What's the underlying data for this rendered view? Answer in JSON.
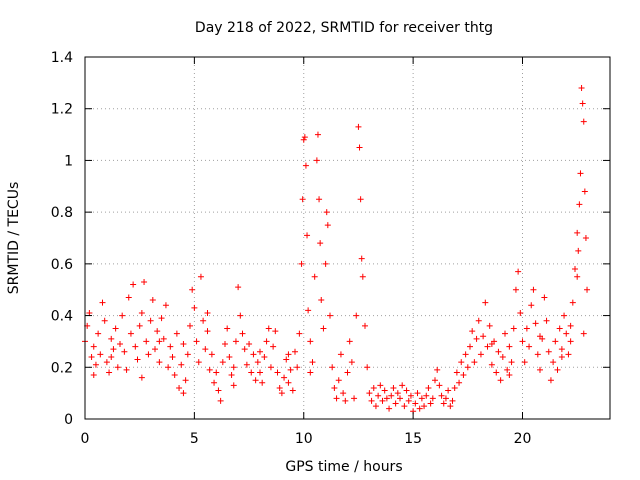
{
  "chart_data": {
    "type": "scatter",
    "title": "Day 218 of 2022, SRMTID for receiver thtg",
    "xlabel": "GPS time / hours",
    "ylabel": "SRMTID / TECUs",
    "xlim": [
      0,
      24
    ],
    "ylim": [
      0,
      1.4
    ],
    "xticks": [
      0,
      5,
      10,
      15,
      20
    ],
    "xtick_labels": [
      "0",
      "5",
      "10",
      "15",
      "20"
    ],
    "yticks": [
      0,
      0.2,
      0.4,
      0.6,
      0.8,
      1.0,
      1.2,
      1.4
    ],
    "ytick_labels": [
      "0",
      "0.2",
      "0.4",
      "0.6",
      "0.8",
      "1",
      "1.2",
      "1.4"
    ],
    "grid": true,
    "marker": "+",
    "marker_color": "#ff0000",
    "series": [
      {
        "name": "SRMTID",
        "points": [
          [
            0.0,
            0.3
          ],
          [
            0.1,
            0.36
          ],
          [
            0.2,
            0.41
          ],
          [
            0.3,
            0.24
          ],
          [
            0.4,
            0.28
          ],
          [
            0.5,
            0.21
          ],
          [
            0.6,
            0.33
          ],
          [
            0.7,
            0.25
          ],
          [
            0.8,
            0.45
          ],
          [
            0.9,
            0.38
          ],
          [
            1.0,
            0.22
          ],
          [
            1.1,
            0.18
          ],
          [
            1.2,
            0.31
          ],
          [
            1.3,
            0.27
          ],
          [
            1.4,
            0.35
          ],
          [
            1.5,
            0.2
          ],
          [
            1.6,
            0.29
          ],
          [
            1.7,
            0.4
          ],
          [
            1.8,
            0.26
          ],
          [
            1.9,
            0.19
          ],
          [
            2.0,
            0.47
          ],
          [
            2.1,
            0.33
          ],
          [
            2.2,
            0.52
          ],
          [
            2.3,
            0.28
          ],
          [
            2.4,
            0.23
          ],
          [
            2.5,
            0.36
          ],
          [
            2.6,
            0.41
          ],
          [
            2.7,
            0.53
          ],
          [
            2.8,
            0.3
          ],
          [
            2.9,
            0.25
          ],
          [
            3.0,
            0.38
          ],
          [
            3.1,
            0.46
          ],
          [
            3.2,
            0.27
          ],
          [
            3.3,
            0.34
          ],
          [
            3.4,
            0.22
          ],
          [
            3.5,
            0.39
          ],
          [
            3.6,
            0.31
          ],
          [
            3.7,
            0.44
          ],
          [
            3.8,
            0.2
          ],
          [
            3.9,
            0.28
          ],
          [
            4.0,
            0.24
          ],
          [
            4.1,
            0.17
          ],
          [
            4.2,
            0.33
          ],
          [
            4.3,
            0.12
          ],
          [
            4.4,
            0.21
          ],
          [
            4.5,
            0.29
          ],
          [
            4.6,
            0.15
          ],
          [
            4.7,
            0.25
          ],
          [
            4.8,
            0.36
          ],
          [
            4.9,
            0.5
          ],
          [
            5.0,
            0.43
          ],
          [
            5.1,
            0.3
          ],
          [
            5.2,
            0.22
          ],
          [
            5.3,
            0.55
          ],
          [
            5.4,
            0.38
          ],
          [
            5.5,
            0.27
          ],
          [
            5.6,
            0.34
          ],
          [
            5.7,
            0.19
          ],
          [
            5.8,
            0.25
          ],
          [
            5.9,
            0.14
          ],
          [
            6.0,
            0.18
          ],
          [
            6.1,
            0.11
          ],
          [
            6.2,
            0.07
          ],
          [
            6.3,
            0.22
          ],
          [
            6.4,
            0.29
          ],
          [
            6.5,
            0.35
          ],
          [
            6.6,
            0.24
          ],
          [
            6.7,
            0.17
          ],
          [
            6.8,
            0.13
          ],
          [
            6.9,
            0.3
          ],
          [
            7.0,
            0.51
          ],
          [
            7.1,
            0.4
          ],
          [
            7.2,
            0.33
          ],
          [
            7.3,
            0.27
          ],
          [
            7.4,
            0.21
          ],
          [
            7.5,
            0.29
          ],
          [
            7.6,
            0.18
          ],
          [
            7.7,
            0.25
          ],
          [
            7.8,
            0.15
          ],
          [
            7.9,
            0.22
          ],
          [
            8.0,
            0.26
          ],
          [
            8.1,
            0.14
          ],
          [
            8.2,
            0.24
          ],
          [
            8.3,
            0.3
          ],
          [
            8.4,
            0.35
          ],
          [
            8.5,
            0.2
          ],
          [
            8.6,
            0.28
          ],
          [
            8.7,
            0.34
          ],
          [
            8.8,
            0.18
          ],
          [
            8.9,
            0.12
          ],
          [
            9.0,
            0.1
          ],
          [
            9.1,
            0.16
          ],
          [
            9.2,
            0.23
          ],
          [
            9.3,
            0.14
          ],
          [
            9.4,
            0.19
          ],
          [
            9.5,
            0.11
          ],
          [
            9.6,
            0.26
          ],
          [
            9.7,
            0.2
          ],
          [
            9.8,
            0.33
          ],
          [
            9.9,
            0.6
          ],
          [
            9.95,
            0.85
          ],
          [
            10.0,
            1.08
          ],
          [
            10.05,
            1.09
          ],
          [
            10.1,
            0.98
          ],
          [
            10.15,
            0.71
          ],
          [
            10.2,
            0.42
          ],
          [
            10.3,
            0.3
          ],
          [
            10.4,
            0.22
          ],
          [
            10.5,
            0.55
          ],
          [
            10.6,
            1.0
          ],
          [
            10.65,
            1.1
          ],
          [
            10.7,
            0.85
          ],
          [
            10.75,
            0.68
          ],
          [
            10.8,
            0.46
          ],
          [
            10.9,
            0.35
          ],
          [
            11.0,
            0.6
          ],
          [
            11.05,
            0.8
          ],
          [
            11.1,
            0.75
          ],
          [
            11.2,
            0.4
          ],
          [
            11.3,
            0.2
          ],
          [
            11.4,
            0.12
          ],
          [
            11.5,
            0.08
          ],
          [
            11.6,
            0.15
          ],
          [
            11.7,
            0.25
          ],
          [
            11.8,
            0.1
          ],
          [
            11.9,
            0.07
          ],
          [
            12.0,
            0.18
          ],
          [
            12.1,
            0.3
          ],
          [
            12.2,
            0.22
          ],
          [
            12.3,
            0.08
          ],
          [
            12.4,
            0.4
          ],
          [
            12.5,
            1.13
          ],
          [
            12.55,
            1.05
          ],
          [
            12.6,
            0.85
          ],
          [
            12.65,
            0.62
          ],
          [
            12.7,
            0.55
          ],
          [
            12.8,
            0.36
          ],
          [
            12.9,
            0.2
          ],
          [
            13.0,
            0.1
          ],
          [
            13.1,
            0.07
          ],
          [
            13.2,
            0.12
          ],
          [
            13.3,
            0.05
          ],
          [
            13.4,
            0.09
          ],
          [
            13.5,
            0.13
          ],
          [
            13.6,
            0.07
          ],
          [
            13.7,
            0.11
          ],
          [
            13.8,
            0.08
          ],
          [
            13.9,
            0.04
          ],
          [
            14.0,
            0.09
          ],
          [
            14.1,
            0.12
          ],
          [
            14.2,
            0.06
          ],
          [
            14.3,
            0.1
          ],
          [
            14.4,
            0.08
          ],
          [
            14.5,
            0.13
          ],
          [
            14.6,
            0.05
          ],
          [
            14.7,
            0.11
          ],
          [
            14.8,
            0.07
          ],
          [
            14.9,
            0.09
          ],
          [
            15.0,
            0.03
          ],
          [
            15.1,
            0.06
          ],
          [
            15.2,
            0.1
          ],
          [
            15.3,
            0.04
          ],
          [
            15.4,
            0.08
          ],
          [
            15.5,
            0.05
          ],
          [
            15.6,
            0.09
          ],
          [
            15.7,
            0.12
          ],
          [
            15.8,
            0.06
          ],
          [
            15.9,
            0.08
          ],
          [
            16.0,
            0.15
          ],
          [
            16.1,
            0.19
          ],
          [
            16.2,
            0.13
          ],
          [
            16.3,
            0.09
          ],
          [
            16.4,
            0.06
          ],
          [
            16.5,
            0.08
          ],
          [
            16.6,
            0.11
          ],
          [
            16.7,
            0.05
          ],
          [
            16.8,
            0.07
          ],
          [
            16.9,
            0.12
          ],
          [
            17.0,
            0.18
          ],
          [
            17.1,
            0.14
          ],
          [
            17.2,
            0.22
          ],
          [
            17.3,
            0.17
          ],
          [
            17.4,
            0.25
          ],
          [
            17.5,
            0.2
          ],
          [
            17.6,
            0.28
          ],
          [
            17.7,
            0.34
          ],
          [
            17.8,
            0.22
          ],
          [
            17.9,
            0.31
          ],
          [
            18.0,
            0.38
          ],
          [
            18.1,
            0.25
          ],
          [
            18.2,
            0.32
          ],
          [
            18.3,
            0.45
          ],
          [
            18.4,
            0.28
          ],
          [
            18.5,
            0.36
          ],
          [
            18.6,
            0.21
          ],
          [
            18.7,
            0.3
          ],
          [
            18.8,
            0.18
          ],
          [
            18.9,
            0.26
          ],
          [
            19.0,
            0.15
          ],
          [
            19.1,
            0.24
          ],
          [
            19.2,
            0.33
          ],
          [
            19.3,
            0.19
          ],
          [
            19.4,
            0.28
          ],
          [
            19.5,
            0.22
          ],
          [
            19.6,
            0.35
          ],
          [
            19.7,
            0.5
          ],
          [
            19.8,
            0.57
          ],
          [
            19.9,
            0.41
          ],
          [
            20.0,
            0.3
          ],
          [
            20.1,
            0.22
          ],
          [
            20.2,
            0.35
          ],
          [
            20.3,
            0.28
          ],
          [
            20.4,
            0.44
          ],
          [
            20.5,
            0.5
          ],
          [
            20.6,
            0.37
          ],
          [
            20.7,
            0.25
          ],
          [
            20.8,
            0.19
          ],
          [
            20.9,
            0.31
          ],
          [
            21.0,
            0.47
          ],
          [
            21.1,
            0.38
          ],
          [
            21.2,
            0.26
          ],
          [
            21.3,
            0.15
          ],
          [
            21.4,
            0.22
          ],
          [
            21.5,
            0.3
          ],
          [
            21.6,
            0.19
          ],
          [
            21.7,
            0.35
          ],
          [
            21.8,
            0.27
          ],
          [
            21.9,
            0.4
          ],
          [
            22.0,
            0.33
          ],
          [
            22.1,
            0.25
          ],
          [
            22.2,
            0.36
          ],
          [
            22.3,
            0.45
          ],
          [
            22.4,
            0.58
          ],
          [
            22.5,
            0.72
          ],
          [
            22.55,
            0.65
          ],
          [
            22.6,
            0.83
          ],
          [
            22.65,
            0.95
          ],
          [
            22.7,
            1.28
          ],
          [
            22.75,
            1.22
          ],
          [
            22.8,
            1.15
          ],
          [
            22.85,
            0.88
          ],
          [
            22.9,
            0.7
          ],
          [
            22.95,
            0.5
          ],
          [
            22.8,
            0.33
          ],
          [
            22.5,
            0.55
          ],
          [
            22.2,
            0.3
          ],
          [
            21.8,
            0.24
          ],
          [
            20.8,
            0.32
          ],
          [
            19.4,
            0.17
          ],
          [
            18.6,
            0.29
          ],
          [
            0.4,
            0.17
          ],
          [
            1.2,
            0.24
          ],
          [
            2.6,
            0.16
          ],
          [
            3.4,
            0.3
          ],
          [
            4.5,
            0.1
          ],
          [
            5.6,
            0.41
          ],
          [
            6.8,
            0.2
          ],
          [
            8.0,
            0.18
          ],
          [
            9.3,
            0.25
          ],
          [
            10.3,
            0.18
          ]
        ]
      }
    ]
  }
}
